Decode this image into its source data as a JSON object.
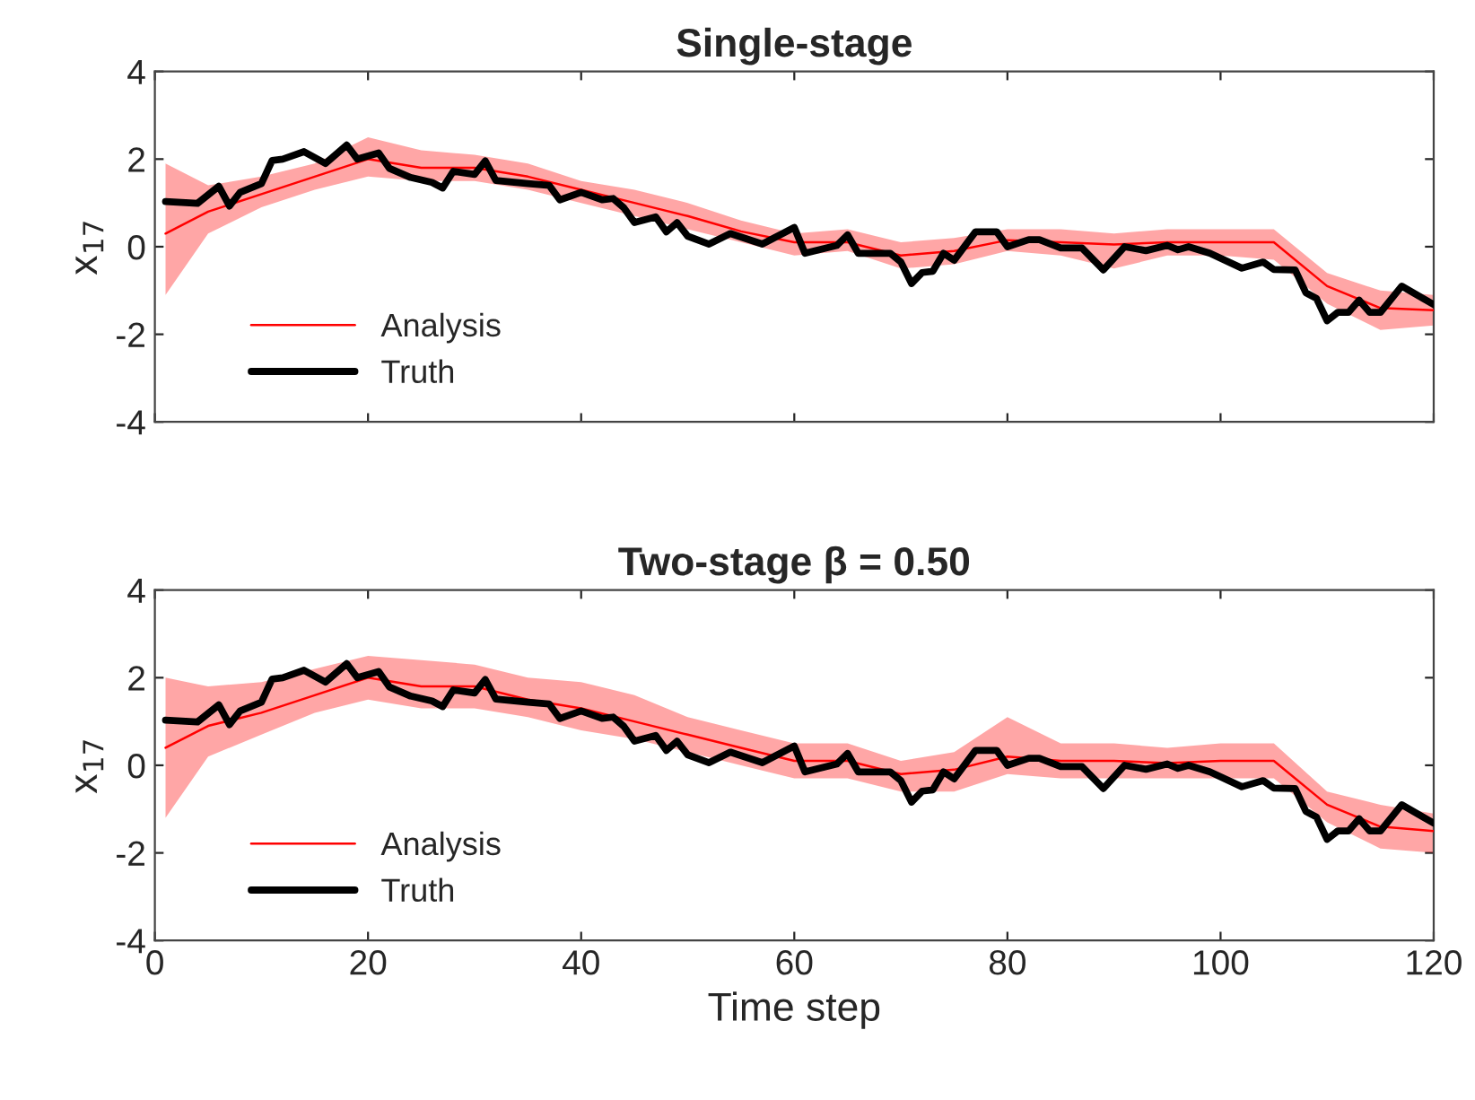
{
  "chart_data": [
    {
      "type": "line",
      "title": "Single-stage",
      "ylabel": "x$_{17}$",
      "xlim": [
        0,
        120
      ],
      "ylim": [
        -4,
        4
      ],
      "xticks": [
        0,
        20,
        40,
        60,
        80,
        100,
        120
      ],
      "yticks": [
        -4,
        -2,
        0,
        2,
        4
      ],
      "tick_labels": "y",
      "grid": false,
      "legend": "bottom left",
      "series": [
        {
          "name": "Analysis",
          "color": "#ff0000",
          "x": [
            1,
            5,
            10,
            15,
            20,
            25,
            30,
            35,
            40,
            45,
            50,
            55,
            60,
            65,
            70,
            75,
            80,
            85,
            90,
            95,
            100,
            105,
            110,
            115,
            120
          ],
          "values": [
            0.3,
            0.8,
            1.2,
            1.6,
            2.0,
            1.8,
            1.8,
            1.6,
            1.3,
            1.0,
            0.7,
            0.35,
            0.1,
            0.1,
            -0.2,
            -0.1,
            0.15,
            0.1,
            0.05,
            0.1,
            0.1,
            0.1,
            -0.9,
            -1.4,
            -1.45
          ],
          "lower": [
            -1.1,
            0.3,
            0.9,
            1.3,
            1.6,
            1.5,
            1.5,
            1.3,
            1.0,
            0.7,
            0.4,
            0.1,
            -0.2,
            -0.1,
            -0.5,
            -0.4,
            -0.1,
            -0.2,
            -0.5,
            -0.2,
            -0.2,
            -0.3,
            -1.3,
            -1.9,
            -1.8
          ],
          "upper": [
            1.9,
            1.4,
            1.6,
            1.9,
            2.5,
            2.2,
            2.1,
            1.9,
            1.5,
            1.3,
            1.0,
            0.6,
            0.3,
            0.4,
            0.1,
            0.2,
            0.4,
            0.4,
            0.3,
            0.4,
            0.4,
            0.4,
            -0.6,
            -1.0,
            -1.1
          ]
        },
        {
          "name": "Truth",
          "color": "#000000",
          "x": [
            1,
            4,
            6,
            7,
            8,
            10,
            11,
            12,
            14,
            16,
            18,
            19,
            21,
            22,
            24,
            26,
            27,
            28,
            30,
            31,
            32,
            35,
            37,
            38,
            40,
            42,
            43,
            44,
            45,
            47,
            48,
            49,
            50,
            52,
            54,
            57,
            60,
            61,
            64,
            65,
            66,
            69,
            70,
            71,
            72,
            73,
            74,
            75,
            77,
            79,
            80,
            82,
            83,
            85,
            87,
            89,
            91,
            93,
            95,
            96,
            97,
            99,
            102,
            104,
            105,
            107,
            108,
            109,
            110,
            111,
            112,
            113,
            114,
            115,
            117,
            119,
            120
          ],
          "values": [
            1.03,
            0.99,
            1.38,
            0.93,
            1.24,
            1.44,
            1.97,
            2.0,
            2.17,
            1.9,
            2.32,
            2.0,
            2.14,
            1.79,
            1.58,
            1.47,
            1.34,
            1.72,
            1.65,
            1.96,
            1.51,
            1.44,
            1.4,
            1.07,
            1.24,
            1.07,
            1.1,
            0.89,
            0.55,
            0.68,
            0.34,
            0.55,
            0.24,
            0.06,
            0.3,
            0.06,
            0.44,
            -0.15,
            0.03,
            0.27,
            -0.15,
            -0.15,
            -0.35,
            -0.84,
            -0.59,
            -0.56,
            -0.15,
            -0.31,
            0.34,
            0.34,
            0.0,
            0.16,
            0.16,
            -0.03,
            -0.03,
            -0.53,
            0.0,
            -0.09,
            0.03,
            -0.07,
            0.0,
            -0.15,
            -0.49,
            -0.35,
            -0.52,
            -0.53,
            -1.05,
            -1.18,
            -1.69,
            -1.5,
            -1.5,
            -1.22,
            -1.5,
            -1.5,
            -0.9,
            -1.18,
            -1.32
          ]
        }
      ]
    },
    {
      "type": "line",
      "title": "Two-stage β = 0.50",
      "xlabel": "Time step",
      "ylabel": "x$_{17}$",
      "xlim": [
        0,
        120
      ],
      "ylim": [
        -4,
        4
      ],
      "xticks": [
        0,
        20,
        40,
        60,
        80,
        100,
        120
      ],
      "yticks": [
        -4,
        -2,
        0,
        2,
        4
      ],
      "grid": false,
      "legend": "bottom left",
      "series": [
        {
          "name": "Analysis",
          "color": "#ff0000",
          "x": [
            1,
            5,
            10,
            15,
            20,
            25,
            30,
            35,
            40,
            45,
            50,
            55,
            60,
            65,
            70,
            75,
            80,
            85,
            90,
            95,
            100,
            105,
            110,
            115,
            120
          ],
          "values": [
            0.4,
            0.9,
            1.2,
            1.6,
            2.0,
            1.8,
            1.8,
            1.5,
            1.3,
            1.0,
            0.7,
            0.4,
            0.1,
            0.1,
            -0.2,
            -0.1,
            0.2,
            0.1,
            0.1,
            0.05,
            0.1,
            0.1,
            -0.9,
            -1.4,
            -1.5
          ],
          "lower": [
            -1.2,
            0.2,
            0.7,
            1.2,
            1.5,
            1.3,
            1.3,
            1.1,
            0.8,
            0.6,
            0.3,
            0.0,
            -0.3,
            -0.3,
            -0.6,
            -0.6,
            -0.2,
            -0.3,
            -0.3,
            -0.3,
            -0.3,
            -0.3,
            -1.3,
            -1.9,
            -2.0
          ],
          "upper": [
            2.0,
            1.8,
            1.9,
            2.2,
            2.5,
            2.4,
            2.3,
            2.0,
            1.9,
            1.6,
            1.1,
            0.8,
            0.5,
            0.5,
            0.1,
            0.3,
            1.1,
            0.5,
            0.5,
            0.4,
            0.5,
            0.5,
            -0.6,
            -0.9,
            -1.1
          ]
        },
        {
          "name": "Truth",
          "color": "#000000",
          "x": [
            1,
            4,
            6,
            7,
            8,
            10,
            11,
            12,
            14,
            16,
            18,
            19,
            21,
            22,
            24,
            26,
            27,
            28,
            30,
            31,
            32,
            35,
            37,
            38,
            40,
            42,
            43,
            44,
            45,
            47,
            48,
            49,
            50,
            52,
            54,
            57,
            60,
            61,
            64,
            65,
            66,
            69,
            70,
            71,
            72,
            73,
            74,
            75,
            77,
            79,
            80,
            82,
            83,
            85,
            87,
            89,
            91,
            93,
            95,
            96,
            97,
            99,
            102,
            104,
            105,
            107,
            108,
            109,
            110,
            111,
            112,
            113,
            114,
            115,
            117,
            119,
            120
          ],
          "values": [
            1.03,
            0.99,
            1.38,
            0.93,
            1.24,
            1.44,
            1.97,
            2.0,
            2.17,
            1.9,
            2.32,
            2.0,
            2.14,
            1.79,
            1.58,
            1.47,
            1.34,
            1.72,
            1.65,
            1.96,
            1.51,
            1.44,
            1.4,
            1.07,
            1.24,
            1.07,
            1.1,
            0.89,
            0.55,
            0.68,
            0.34,
            0.55,
            0.24,
            0.06,
            0.3,
            0.06,
            0.44,
            -0.15,
            0.03,
            0.27,
            -0.15,
            -0.15,
            -0.35,
            -0.84,
            -0.59,
            -0.56,
            -0.15,
            -0.31,
            0.34,
            0.34,
            0.0,
            0.16,
            0.16,
            -0.03,
            -0.03,
            -0.53,
            0.0,
            -0.09,
            0.03,
            -0.07,
            0.0,
            -0.15,
            -0.49,
            -0.35,
            -0.52,
            -0.53,
            -1.05,
            -1.18,
            -1.69,
            -1.5,
            -1.5,
            -1.22,
            -1.5,
            -1.5,
            -0.9,
            -1.18,
            -1.32
          ]
        }
      ]
    }
  ]
}
